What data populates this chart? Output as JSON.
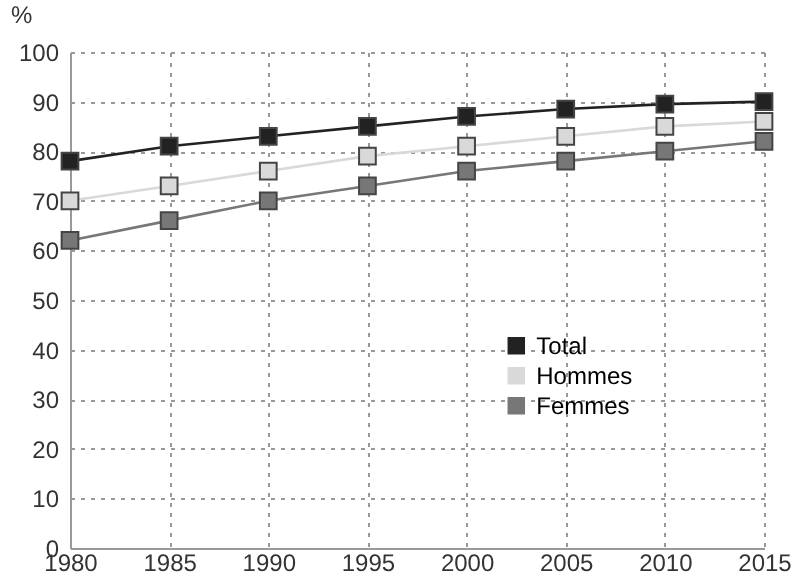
{
  "chart_data": {
    "type": "line",
    "ylabel": "%",
    "x": [
      1980,
      1985,
      1990,
      1995,
      2000,
      2005,
      2010,
      2015
    ],
    "series": [
      {
        "name": "Total",
        "color": "#222222",
        "values": [
          78,
          81,
          83,
          85,
          87,
          88.5,
          89.5,
          90
        ]
      },
      {
        "name": "Hommes",
        "color": "#d9d9d9",
        "values": [
          70,
          73,
          76,
          79,
          81,
          83,
          85,
          86
        ]
      },
      {
        "name": "Femmes",
        "color": "#777777",
        "values": [
          62,
          66,
          70,
          73,
          76,
          78,
          80,
          82
        ]
      }
    ],
    "xlim": [
      1980,
      2015
    ],
    "xticks": [
      1980,
      1985,
      1990,
      1995,
      2000,
      2005,
      2010,
      2015
    ],
    "ylim": [
      0,
      100
    ],
    "yticks": [
      0,
      10,
      20,
      30,
      40,
      50,
      60,
      70,
      80,
      90,
      100
    ],
    "grid": true,
    "legend": "right",
    "marker": "square",
    "line_style": "solid"
  }
}
